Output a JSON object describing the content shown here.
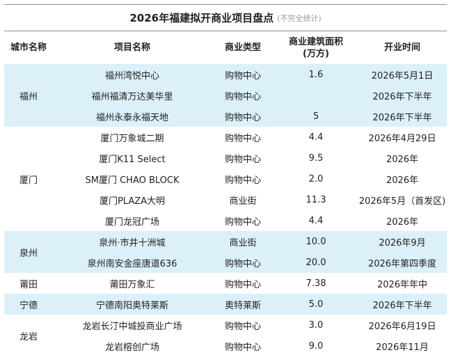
{
  "title": {
    "main": "2026年福建拟开商业项目盘点",
    "note": "(不完全统计)"
  },
  "columns": [
    "城市名称",
    "项目名称",
    "商业类型",
    "商业建筑面积\n(万方)",
    "开业时间"
  ],
  "column_labels": {
    "city": "城市名称",
    "project": "项目名称",
    "type": "商业类型",
    "area_line1": "商业建筑面积",
    "area_line2": "(万方)",
    "date": "开业时间"
  },
  "colors": {
    "band_blue": "#dbf0f9",
    "band_white": "#ffffff",
    "rule": "#8a8f96"
  },
  "groups": [
    {
      "city": "福州",
      "band": "blue",
      "rows": [
        {
          "project": "福州湾悦中心",
          "type": "购物中心",
          "area": "1.6",
          "date": "2026年5月1日"
        },
        {
          "project": "福州福清万达美华里",
          "type": "购物中心",
          "area": "",
          "date": "2026年下半年"
        },
        {
          "project": "福州永泰永福天地",
          "type": "购物中心",
          "area": "5",
          "date": "2026年下半年"
        }
      ]
    },
    {
      "city": "厦门",
      "band": "white",
      "rows": [
        {
          "project": "厦门万象城二期",
          "type": "购物中心",
          "area": "4.4",
          "date": "2026年4月29日"
        },
        {
          "project": "厦门K11 Select",
          "type": "购物中心",
          "area": "9.5",
          "date": "2026年"
        },
        {
          "project": "SM厦门 CHAO BLOCK",
          "type": "购物中心",
          "area": "2.0",
          "date": "2026年"
        },
        {
          "project": "厦门PLAZA大明",
          "type": "商业街",
          "area": "11.3",
          "date": "2026年5月（首发区)"
        },
        {
          "project": "厦门龙冠广场",
          "type": "购物中心",
          "area": "4.4",
          "date": "2026年"
        }
      ]
    },
    {
      "city": "泉州",
      "band": "blue",
      "rows": [
        {
          "project": "泉州·市井十洲城",
          "type": "商业街",
          "area": "10.0",
          "date": "2026年9月"
        },
        {
          "project": "泉州南安金座唐道636",
          "type": "购物中心",
          "area": "20.0",
          "date": "2026年第四季度"
        }
      ]
    },
    {
      "city": "莆田",
      "band": "white",
      "rows": [
        {
          "project": "莆田万象汇",
          "type": "购物中心",
          "area": "7.38",
          "date": "2026年年中"
        }
      ]
    },
    {
      "city": "宁德",
      "band": "blue",
      "rows": [
        {
          "project": "宁德南阳奥特莱斯",
          "type": "奥特莱斯",
          "area": "5.0",
          "date": "2026年下半年"
        }
      ]
    },
    {
      "city": "龙岩",
      "band": "white",
      "rows": [
        {
          "project": "龙岩长汀中城投商业广场",
          "type": "购物中心",
          "area": "3.0",
          "date": "2026年6月19日"
        },
        {
          "project": "龙岩榕创广场",
          "type": "购物中心",
          "area": "9.0",
          "date": "2026年11月"
        }
      ]
    }
  ]
}
